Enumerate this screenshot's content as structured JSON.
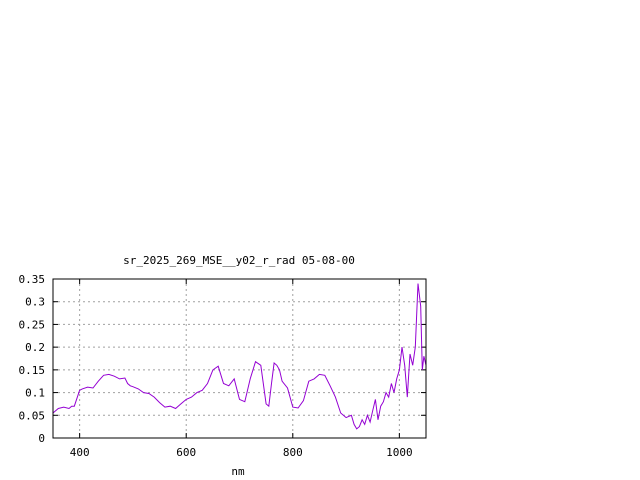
{
  "chart_data": {
    "type": "line",
    "title": "sr_2025_269_MSE__y02_r_rad 05-08-00",
    "xlabel": "nm",
    "ylabel": "",
    "xlim": [
      350,
      1050
    ],
    "ylim": [
      0,
      0.35
    ],
    "xticks": [
      400,
      600,
      800,
      1000
    ],
    "xtick_labels": [
      "400",
      "600",
      "800",
      "1000"
    ],
    "yticks": [
      0,
      0.05,
      0.1,
      0.15,
      0.2,
      0.25,
      0.3,
      0.35
    ],
    "ytick_labels": [
      "0",
      "0.05",
      "0.1",
      "0.15",
      "0.2",
      "0.25",
      "0.3",
      "0.35"
    ],
    "grid": true,
    "legend": "none",
    "colors": {
      "series": "#9400d3"
    },
    "series": [
      {
        "x": [
          350,
          360,
          370,
          380,
          385,
          390,
          400,
          405,
          415,
          425,
          435,
          445,
          455,
          465,
          475,
          485,
          490,
          495,
          500,
          510,
          520,
          530,
          540,
          550,
          560,
          570,
          580,
          590,
          600,
          610,
          620,
          630,
          640,
          650,
          660,
          670,
          680,
          690,
          700,
          710,
          720,
          730,
          740,
          750,
          755,
          760,
          765,
          770,
          775,
          780,
          790,
          800,
          810,
          820,
          830,
          840,
          850,
          860,
          870,
          880,
          890,
          900,
          910,
          915,
          920,
          925,
          930,
          935,
          940,
          945,
          950,
          955,
          960,
          965,
          970,
          975,
          980,
          985,
          990,
          995,
          1000,
          1005,
          1010,
          1015,
          1020,
          1025,
          1030,
          1035,
          1040,
          1043,
          1046,
          1050
        ],
        "y": [
          0.055,
          0.065,
          0.068,
          0.065,
          0.07,
          0.07,
          0.105,
          0.108,
          0.112,
          0.11,
          0.125,
          0.138,
          0.14,
          0.136,
          0.13,
          0.132,
          0.12,
          0.115,
          0.113,
          0.108,
          0.1,
          0.098,
          0.09,
          0.078,
          0.068,
          0.07,
          0.065,
          0.075,
          0.085,
          0.09,
          0.1,
          0.105,
          0.12,
          0.15,
          0.158,
          0.12,
          0.115,
          0.13,
          0.085,
          0.08,
          0.13,
          0.168,
          0.16,
          0.075,
          0.07,
          0.12,
          0.165,
          0.16,
          0.15,
          0.125,
          0.11,
          0.068,
          0.066,
          0.082,
          0.125,
          0.13,
          0.14,
          0.138,
          0.115,
          0.09,
          0.055,
          0.045,
          0.05,
          0.03,
          0.02,
          0.025,
          0.04,
          0.03,
          0.05,
          0.035,
          0.06,
          0.085,
          0.04,
          0.07,
          0.08,
          0.1,
          0.09,
          0.12,
          0.1,
          0.13,
          0.15,
          0.2,
          0.16,
          0.09,
          0.185,
          0.16,
          0.2,
          0.34,
          0.29,
          0.15,
          0.18,
          0.16
        ]
      }
    ]
  }
}
